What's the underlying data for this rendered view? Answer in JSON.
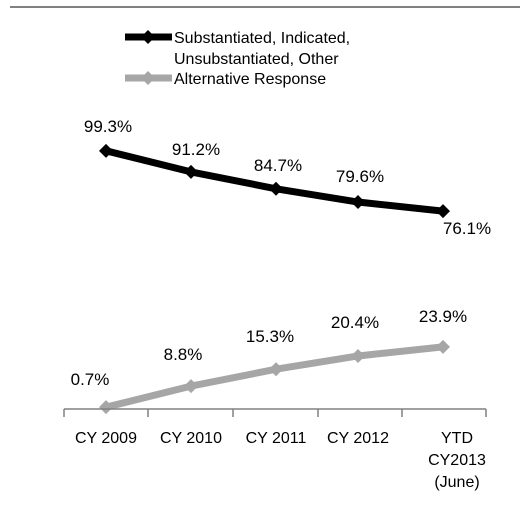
{
  "chart_data": {
    "type": "line",
    "title": "",
    "xlabel": "",
    "ylabel": "",
    "ylim": [
      0,
      100
    ],
    "grid": false,
    "legend_position": "top",
    "categories": [
      [
        "CY 2009"
      ],
      [
        "CY 2010"
      ],
      [
        "CY 2011"
      ],
      [
        "CY 2012"
      ],
      [
        "YTD",
        "CY2013",
        "(June)"
      ]
    ],
    "series": [
      {
        "name_lines": [
          "Substantiated, Indicated,",
          "Unsubstantiated, Other"
        ],
        "color": "#000000",
        "values": [
          99.3,
          91.2,
          84.7,
          79.6,
          76.1
        ],
        "labels": [
          "99.3%",
          "91.2%",
          "84.7%",
          "79.6%",
          "76.1%"
        ]
      },
      {
        "name_lines": [
          "Alternative Response"
        ],
        "color": "#a6a6a6",
        "values": [
          0.7,
          8.8,
          15.3,
          20.4,
          23.9
        ],
        "labels": [
          "0.7%",
          "8.8%",
          "15.3%",
          "20.4%",
          "23.9%"
        ]
      }
    ]
  }
}
